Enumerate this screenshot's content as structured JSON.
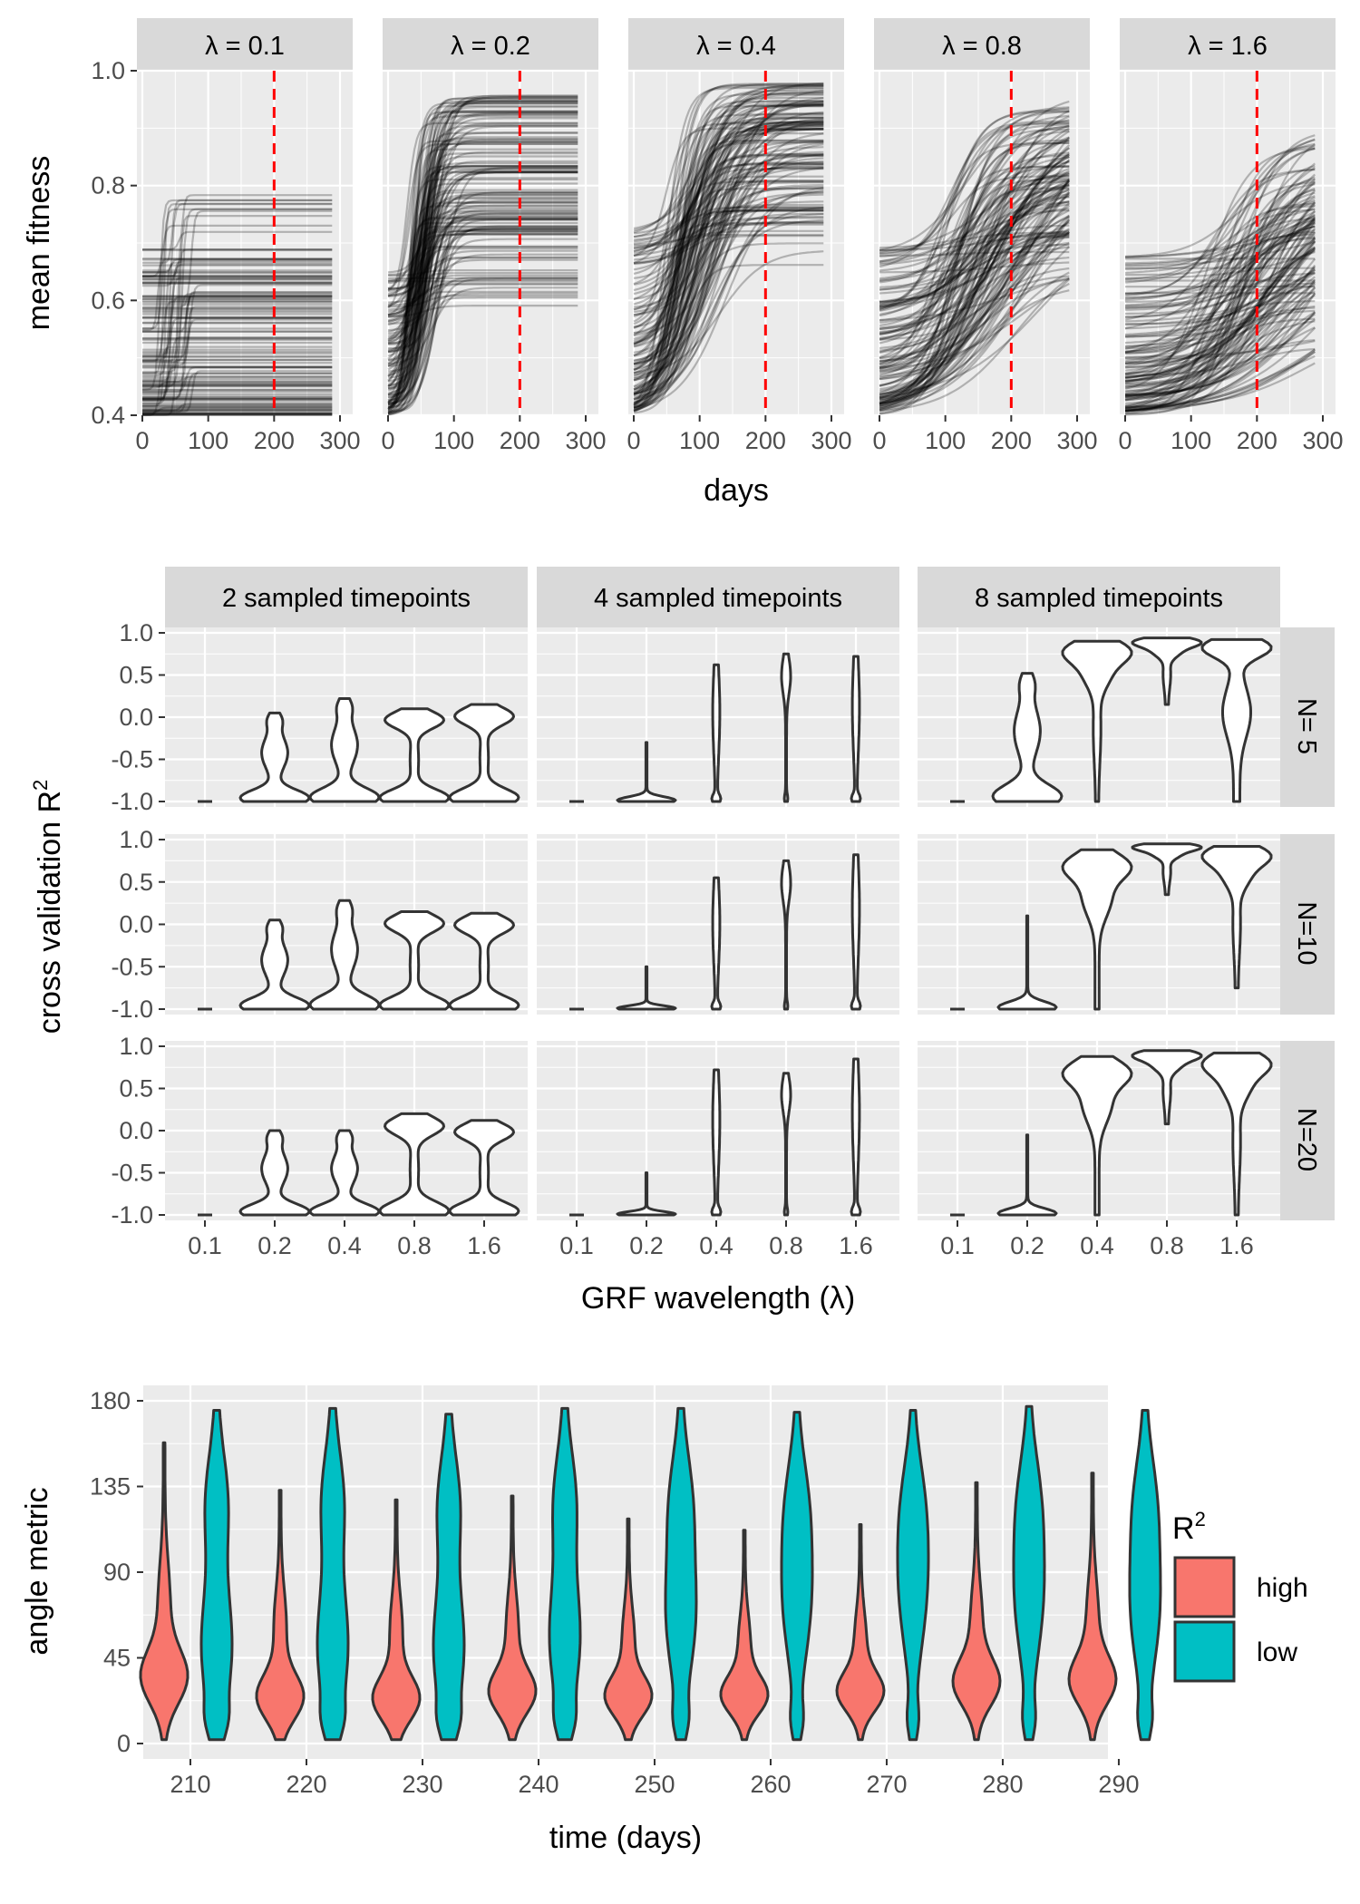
{
  "chart_data": [
    {
      "type": "line",
      "panel_strip_labels": [
        "λ = 0.1",
        "λ = 0.2",
        "λ = 0.4",
        "λ = 0.8",
        "λ = 1.6"
      ],
      "lambda": [
        0.1,
        0.2,
        0.4,
        0.8,
        1.6
      ],
      "xlabel": "days",
      "ylabel": "mean fitness",
      "xlim": [
        0,
        300
      ],
      "ylim": [
        0.4,
        1.0
      ],
      "x_ticks": [
        0,
        100,
        200,
        300
      ],
      "y_ticks": [
        "0.4",
        "0.6",
        "0.8",
        "1.0"
      ],
      "reference_line_day": 200,
      "reference_line_color": "#ff0000",
      "line_color": "#000000",
      "panels": [
        {
          "lambda": 0.1,
          "start_range": [
            0.4,
            0.69
          ],
          "final_range": [
            0.4,
            0.84
          ],
          "rise_onset_day": 40,
          "rise_duration_days": 12
        },
        {
          "lambda": 0.2,
          "start_range": [
            0.4,
            0.65
          ],
          "final_range": [
            0.57,
            0.96
          ],
          "rise_onset_day": 20,
          "rise_duration_days": 60
        },
        {
          "lambda": 0.4,
          "start_range": [
            0.4,
            0.72
          ],
          "final_range": [
            0.64,
            0.98
          ],
          "rise_onset_day": 20,
          "rise_duration_days": 140
        },
        {
          "lambda": 0.8,
          "start_range": [
            0.4,
            0.7
          ],
          "final_range": [
            0.62,
            0.96
          ],
          "rise_onset_day": 30,
          "rise_duration_days": 260
        },
        {
          "lambda": 1.6,
          "start_range": [
            0.4,
            0.68
          ],
          "final_range": [
            0.5,
            0.9
          ],
          "rise_onset_day": 60,
          "rise_duration_days": 300
        }
      ]
    },
    {
      "type": "violin",
      "xlabel": "GRF wavelength (λ)",
      "ylabel": "cross validation R",
      "ylabel_superscript": "2",
      "x_categories": [
        "0.1",
        "0.2",
        "0.4",
        "0.8",
        "1.6"
      ],
      "y_ticks": [
        "-1.0",
        "-0.5",
        "0.0",
        "0.5",
        "1.0"
      ],
      "ylim": [
        -1.0,
        1.0
      ],
      "column_labels": [
        "2 sampled timepoints",
        "4 sampled timepoints",
        "8 sampled timepoints"
      ],
      "row_labels": [
        "N= 5",
        "N=10",
        "N=20"
      ],
      "violin_fill": "#ffffff",
      "violin_stroke": "#333333",
      "panels": [
        [
          [
            {
              "min": -1.0,
              "max": -1.0,
              "shape": "flat"
            },
            {
              "min": -1.0,
              "max": 0.05,
              "shape": "bottom"
            },
            {
              "min": -1.0,
              "max": 0.22,
              "shape": "bottom"
            },
            {
              "min": -1.0,
              "max": 0.1,
              "shape": "bimodal"
            },
            {
              "min": -1.0,
              "max": 0.15,
              "shape": "bimodal"
            }
          ],
          [
            {
              "min": -1.0,
              "max": -1.0,
              "shape": "flat"
            },
            {
              "min": -1.0,
              "max": -0.3,
              "shape": "bottom-narrow"
            },
            {
              "min": -1.0,
              "max": 0.62,
              "shape": "thin"
            },
            {
              "min": -1.0,
              "max": 0.75,
              "shape": "thin-top"
            },
            {
              "min": -1.0,
              "max": 0.72,
              "shape": "thin"
            }
          ],
          [
            {
              "min": -1.0,
              "max": -1.0,
              "shape": "flat"
            },
            {
              "min": -1.0,
              "max": 0.52,
              "shape": "bottom"
            },
            {
              "min": -1.0,
              "max": 0.9,
              "shape": "top"
            },
            {
              "min": 0.15,
              "max": 0.94,
              "shape": "top"
            },
            {
              "min": -1.0,
              "max": 0.92,
              "shape": "top-mid"
            }
          ]
        ],
        [
          [
            {
              "min": -1.0,
              "max": -1.0,
              "shape": "flat"
            },
            {
              "min": -1.0,
              "max": 0.05,
              "shape": "bottom"
            },
            {
              "min": -1.0,
              "max": 0.28,
              "shape": "bottom"
            },
            {
              "min": -1.0,
              "max": 0.15,
              "shape": "bimodal"
            },
            {
              "min": -1.0,
              "max": 0.13,
              "shape": "bimodal"
            }
          ],
          [
            {
              "min": -1.0,
              "max": -1.0,
              "shape": "flat"
            },
            {
              "min": -1.0,
              "max": -0.5,
              "shape": "bottom-narrow"
            },
            {
              "min": -1.0,
              "max": 0.55,
              "shape": "thin"
            },
            {
              "min": -1.0,
              "max": 0.75,
              "shape": "thin-top"
            },
            {
              "min": -1.0,
              "max": 0.82,
              "shape": "thin"
            }
          ],
          [
            {
              "min": -1.0,
              "max": -1.0,
              "shape": "flat"
            },
            {
              "min": -1.0,
              "max": 0.1,
              "shape": "bottom-narrow"
            },
            {
              "min": -1.0,
              "max": 0.88,
              "shape": "top-narrow"
            },
            {
              "min": 0.35,
              "max": 0.95,
              "shape": "top"
            },
            {
              "min": -0.75,
              "max": 0.92,
              "shape": "top"
            }
          ]
        ],
        [
          [
            {
              "min": -1.0,
              "max": -1.0,
              "shape": "flat"
            },
            {
              "min": -1.0,
              "max": 0.0,
              "shape": "bottom"
            },
            {
              "min": -1.0,
              "max": 0.0,
              "shape": "bottom"
            },
            {
              "min": -1.0,
              "max": 0.2,
              "shape": "bimodal"
            },
            {
              "min": -1.0,
              "max": 0.12,
              "shape": "bimodal"
            }
          ],
          [
            {
              "min": -1.0,
              "max": -1.0,
              "shape": "flat"
            },
            {
              "min": -1.0,
              "max": -0.5,
              "shape": "bottom-narrow"
            },
            {
              "min": -1.0,
              "max": 0.72,
              "shape": "thin"
            },
            {
              "min": -1.0,
              "max": 0.68,
              "shape": "thin-top"
            },
            {
              "min": -1.0,
              "max": 0.85,
              "shape": "thin"
            }
          ],
          [
            {
              "min": -1.0,
              "max": -1.0,
              "shape": "flat"
            },
            {
              "min": -1.0,
              "max": -0.05,
              "shape": "bottom-narrow"
            },
            {
              "min": -1.0,
              "max": 0.88,
              "shape": "top-narrow"
            },
            {
              "min": 0.08,
              "max": 0.95,
              "shape": "top"
            },
            {
              "min": -1.0,
              "max": 0.92,
              "shape": "top"
            }
          ]
        ]
      ]
    },
    {
      "type": "violin",
      "xlabel": "time (days)",
      "ylabel": "angle metric",
      "x_categories": [
        "210",
        "220",
        "230",
        "240",
        "250",
        "260",
        "270",
        "280",
        "290"
      ],
      "y_ticks": [
        "0",
        "45",
        "90",
        "135",
        "180"
      ],
      "ylim": [
        0,
        180
      ],
      "legend": {
        "title": "R",
        "title_superscript": "2",
        "position": "right",
        "entries": [
          {
            "name": "high",
            "color": "#F8766D"
          },
          {
            "name": "low",
            "color": "#00BFC4"
          }
        ]
      },
      "series": [
        {
          "name": "high",
          "color": "#F8766D",
          "values": [
            {
              "day": 210,
              "min": 2,
              "max": 158,
              "mode": 38
            },
            {
              "day": 220,
              "min": 2,
              "max": 133,
              "mode": 30
            },
            {
              "day": 230,
              "min": 2,
              "max": 128,
              "mode": 30
            },
            {
              "day": 240,
              "min": 2,
              "max": 130,
              "mode": 35
            },
            {
              "day": 250,
              "min": 2,
              "max": 118,
              "mode": 35
            },
            {
              "day": 260,
              "min": 2,
              "max": 112,
              "mode": 38
            },
            {
              "day": 270,
              "min": 2,
              "max": 115,
              "mode": 40
            },
            {
              "day": 280,
              "min": 2,
              "max": 137,
              "mode": 40
            },
            {
              "day": 290,
              "min": 2,
              "max": 142,
              "mode": 40
            }
          ]
        },
        {
          "name": "low",
          "color": "#00BFC4",
          "values": [
            {
              "day": 210,
              "min": 2,
              "max": 175,
              "mode": 60
            },
            {
              "day": 220,
              "min": 2,
              "max": 176,
              "mode": 60
            },
            {
              "day": 230,
              "min": 2,
              "max": 173,
              "mode": 60
            },
            {
              "day": 240,
              "min": 2,
              "max": 176,
              "mode": 65
            },
            {
              "day": 250,
              "min": 2,
              "max": 176,
              "mode": 80
            },
            {
              "day": 260,
              "min": 2,
              "max": 174,
              "mode": 90
            },
            {
              "day": 270,
              "min": 2,
              "max": 175,
              "mode": 95
            },
            {
              "day": 280,
              "min": 2,
              "max": 177,
              "mode": 90
            },
            {
              "day": 290,
              "min": 2,
              "max": 175,
              "mode": 85
            }
          ]
        }
      ]
    }
  ]
}
